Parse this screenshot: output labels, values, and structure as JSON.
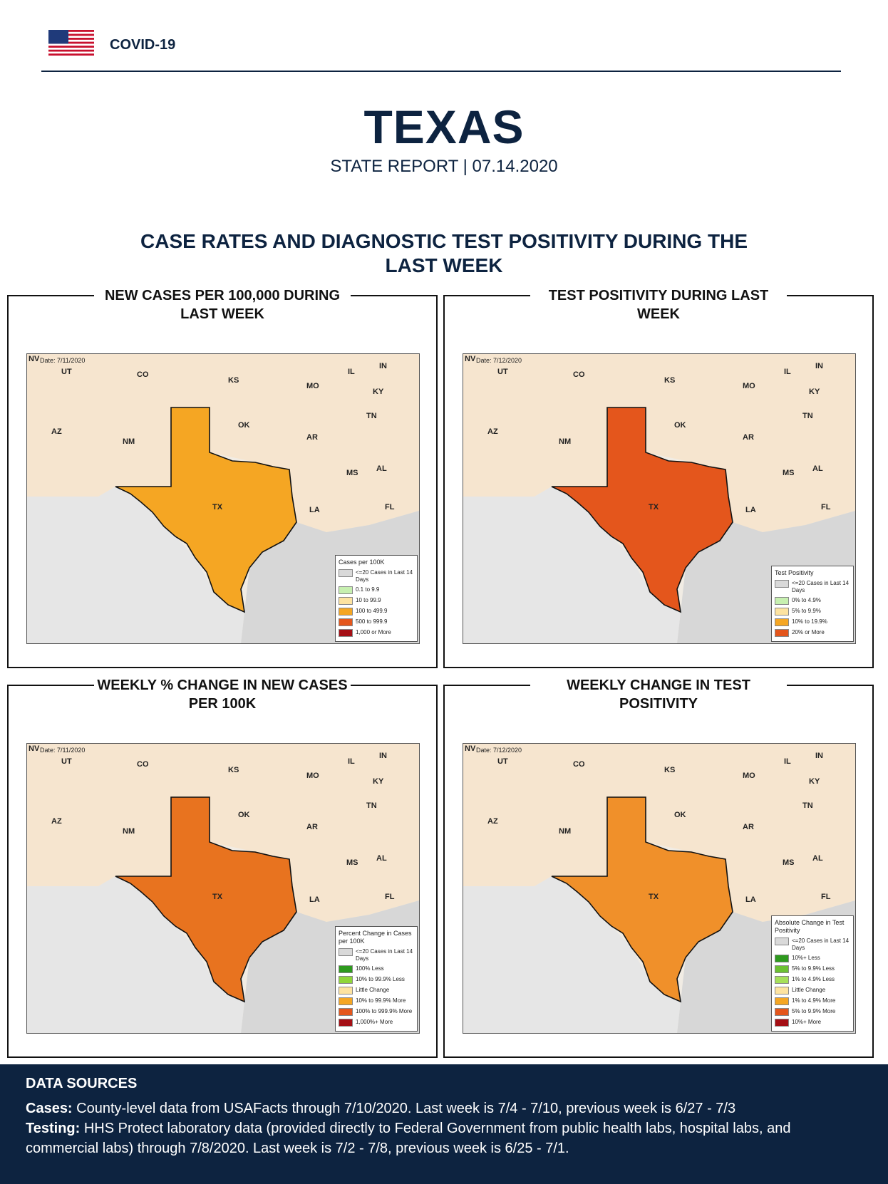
{
  "header": {
    "brand": "COVID-19"
  },
  "report": {
    "state": "TEXAS",
    "subtitle": "STATE REPORT | 07.14.2020"
  },
  "section": {
    "title": "CASE RATES AND DIAGNOSTIC TEST POSITIVITY DURING THE LAST WEEK"
  },
  "panels": [
    {
      "title": "NEW CASES PER 100,000 DURING LAST WEEK",
      "date": "Date: 7/11/2020",
      "fill": "#f5a623",
      "legend_title": "Cases per 100K",
      "legend": [
        {
          "label": "<=20 Cases in Last 14 Days",
          "color": "#d9d9d9"
        },
        {
          "label": "0.1 to 9.9",
          "color": "#c7f0b0"
        },
        {
          "label": "10 to 99.9",
          "color": "#fde3a0"
        },
        {
          "label": "100 to 499.9",
          "color": "#f5a623"
        },
        {
          "label": "500 to 999.9",
          "color": "#e4561c"
        },
        {
          "label": "1,000 or More",
          "color": "#a50f15"
        }
      ]
    },
    {
      "title": "TEST POSITIVITY DURING LAST WEEK",
      "date": "Date: 7/12/2020",
      "fill": "#e4561c",
      "legend_title": "Test Positivity",
      "legend": [
        {
          "label": "<=20 Cases in Last 14 Days",
          "color": "#d9d9d9"
        },
        {
          "label": "0% to 4.9%",
          "color": "#c7f0b0"
        },
        {
          "label": "5% to 9.9%",
          "color": "#fde3a0"
        },
        {
          "label": "10% to 19.9%",
          "color": "#f5a623"
        },
        {
          "label": "20% or More",
          "color": "#e4561c"
        }
      ]
    },
    {
      "title": "WEEKLY % CHANGE IN NEW CASES PER 100K",
      "date": "Date: 7/11/2020",
      "fill": "#e8731f",
      "legend_title": "Percent Change in Cases per 100K",
      "legend": [
        {
          "label": "<=20 Cases in Last 14 Days",
          "color": "#d9d9d9"
        },
        {
          "label": "100% Less",
          "color": "#2e9a1e"
        },
        {
          "label": "10% to 99.9% Less",
          "color": "#8fd63a"
        },
        {
          "label": "Little Change",
          "color": "#fde3a0"
        },
        {
          "label": "10% to 99.9% More",
          "color": "#f5a623"
        },
        {
          "label": "100% to 999.9% More",
          "color": "#e4561c"
        },
        {
          "label": "1,000%+ More",
          "color": "#a50f15"
        }
      ]
    },
    {
      "title": "WEEKLY CHANGE IN TEST POSITIVITY",
      "date": "Date: 7/12/2020",
      "fill": "#f0902a",
      "legend_title": "Absolute Change in Test Positivity",
      "legend": [
        {
          "label": "<=20 Cases in Last 14 Days",
          "color": "#d9d9d9"
        },
        {
          "label": "10%+ Less",
          "color": "#2e9a1e"
        },
        {
          "label": "5% to 9.9% Less",
          "color": "#6cc132"
        },
        {
          "label": "1% to 4.9% Less",
          "color": "#a6e05a"
        },
        {
          "label": "Little Change",
          "color": "#fde3a0"
        },
        {
          "label": "1% to 4.9% More",
          "color": "#f5a623"
        },
        {
          "label": "5% to 9.9% More",
          "color": "#e4561c"
        },
        {
          "label": "10%+ More",
          "color": "#a50f15"
        }
      ]
    }
  ],
  "map_labels": [
    "NV",
    "UT",
    "CO",
    "KS",
    "MO",
    "IL",
    "IN",
    "KY",
    "TN",
    "AZ",
    "NM",
    "OK",
    "AR",
    "MS",
    "AL",
    "TX",
    "LA",
    "FL"
  ],
  "footer": {
    "title": "DATA SOURCES",
    "cases_label": "Cases:",
    "cases_text": " County-level data from USAFacts through 7/10/2020. Last week is 7/4 - 7/10, previous week is 6/27 - 7/3",
    "testing_label": "Testing:",
    "testing_text": " HHS Protect laboratory data (provided directly to Federal Government from public health labs, hospital labs, and commercial labs) through 7/8/2020. Last week is 7/2 - 7/8, previous week is 6/25 - 7/1."
  }
}
